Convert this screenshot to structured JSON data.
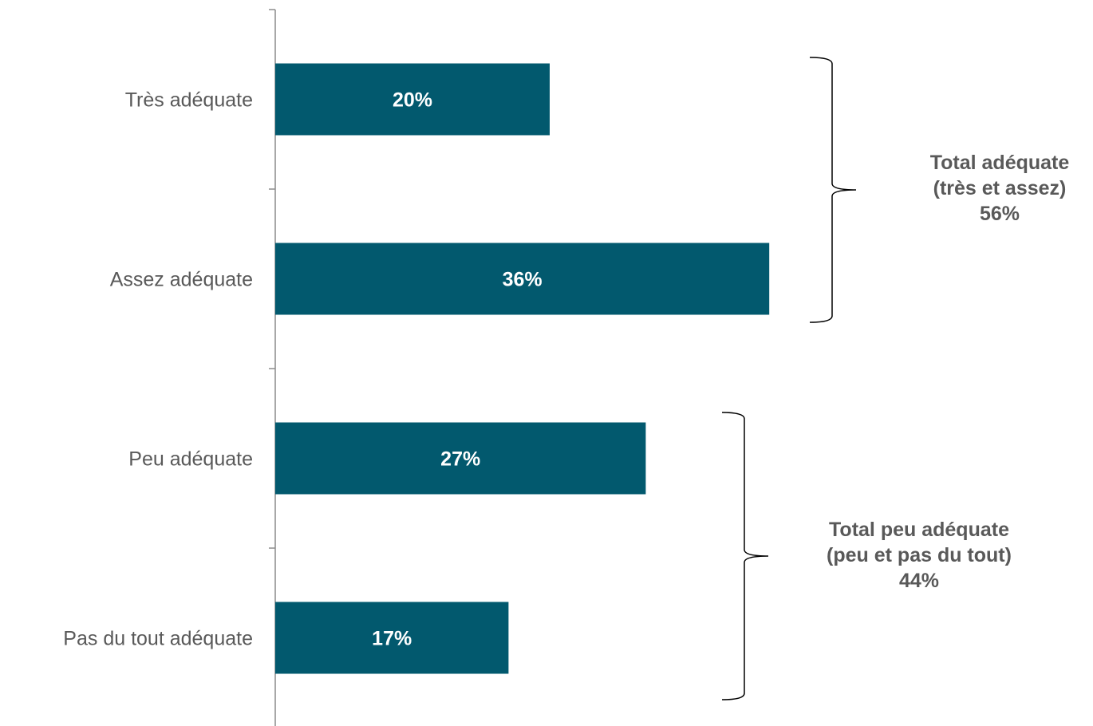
{
  "colors": {
    "bar": "#02596e",
    "axis": "#8c8c8c",
    "category_text": "#595959",
    "bar_label_text": "#ffffff",
    "group_text": "#595959",
    "brace": "#000000"
  },
  "chart_data": {
    "type": "bar",
    "orientation": "horizontal",
    "title": "",
    "xlabel": "",
    "ylabel": "",
    "categories": [
      "Très adéquate",
      "Assez adéquate",
      "Peu adéquate",
      "Pas du tout adéquate"
    ],
    "values": [
      20,
      36,
      27,
      17
    ],
    "data_labels": [
      "20%",
      "36%",
      "27%",
      "17%"
    ],
    "grid": false,
    "legend": "none",
    "groups": [
      {
        "categories": [
          "Très adéquate",
          "Assez adéquate"
        ],
        "lines": [
          "Total adéquate",
          "(très et assez)",
          "56%"
        ],
        "value": 56
      },
      {
        "categories": [
          "Peu adéquate",
          "Pas du tout adéquate"
        ],
        "lines": [
          "Total peu adéquate",
          "(peu et pas du tout)",
          "44%"
        ],
        "value": 44
      }
    ]
  }
}
